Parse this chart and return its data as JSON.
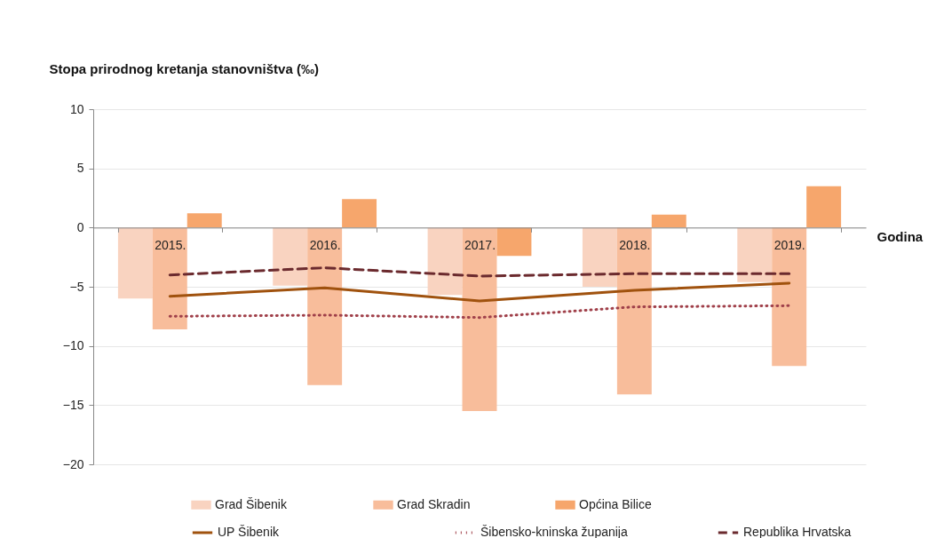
{
  "chart_data": {
    "type": "bar",
    "ylabel": "Stopa prirodnog kretanja stanovništva (‰)",
    "xlabel": "Godina",
    "categories": [
      "2015.",
      "2016.",
      "2017.",
      "2018.",
      "2019."
    ],
    "series": [
      {
        "name": "Grad Šibenik",
        "type": "bar",
        "color": "#f9d3c0",
        "values": [
          -6.0,
          -4.9,
          -5.7,
          -5.0,
          -4.6
        ]
      },
      {
        "name": "Grad Skradin",
        "type": "bar",
        "color": "#f8bd9b",
        "values": [
          -8.6,
          -13.3,
          -15.5,
          -14.1,
          -11.7
        ]
      },
      {
        "name": "Općina Bilice",
        "type": "bar",
        "color": "#f6a66c",
        "values": [
          1.2,
          2.4,
          -2.4,
          1.1,
          3.5
        ]
      },
      {
        "name": "UP Šibenik",
        "type": "line",
        "color": "#a0520e",
        "line_style": "solid",
        "values": [
          -5.8,
          -5.1,
          -6.2,
          -5.3,
          -4.7
        ]
      },
      {
        "name": "Šibensko-kninska županija",
        "type": "line",
        "color": "#a0404a",
        "line_style": "dotted",
        "values": [
          -7.5,
          -7.4,
          -7.6,
          -6.7,
          -6.6
        ]
      },
      {
        "name": "Republika Hrvatska",
        "type": "line",
        "color": "#6b2a2e",
        "line_style": "dashed",
        "values": [
          -4.0,
          -3.4,
          -4.1,
          -3.9,
          -3.9
        ]
      }
    ],
    "ylim": [
      -20,
      10
    ],
    "yticks": [
      -20,
      -15,
      -10,
      -5,
      0,
      5,
      10
    ],
    "grid": "y",
    "legend": "bottom"
  }
}
